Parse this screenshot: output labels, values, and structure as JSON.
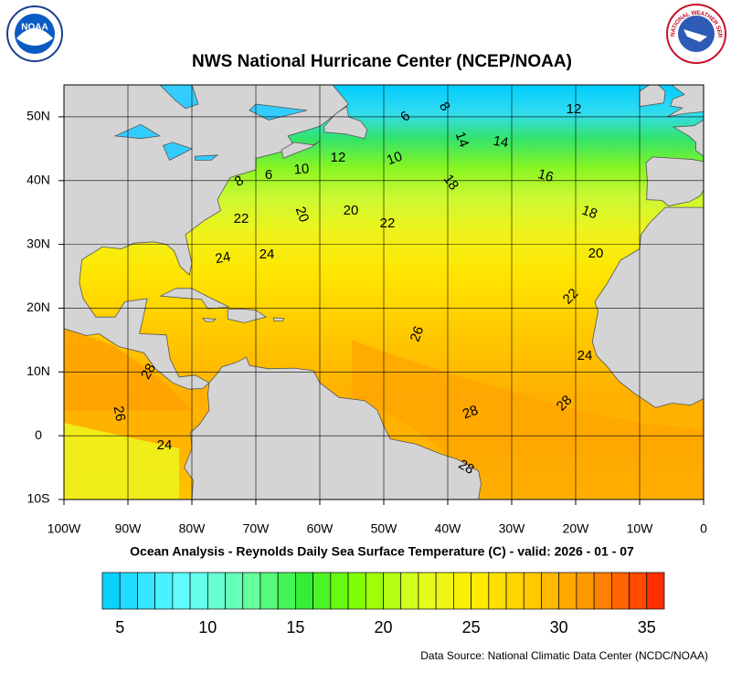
{
  "map": {
    "title": "NWS National Hurricane Center (NCEP/NOAA)",
    "subtitle": "Ocean Analysis - Reynolds Daily Sea Surface Temperature (C) - valid: 2026 - 01 - 07",
    "source": "Data Source: National Climatic Data Center (NCDC/NOAA)",
    "logos": {
      "left": "NOAA",
      "right": "NATIONAL WEATHER SERVICE"
    },
    "xlim": [
      -100,
      0
    ],
    "ylim": [
      -10,
      55
    ],
    "xticks": [
      {
        "value": -100,
        "label": "100W"
      },
      {
        "value": -90,
        "label": "90W"
      },
      {
        "value": -80,
        "label": "80W"
      },
      {
        "value": -70,
        "label": "70W"
      },
      {
        "value": -60,
        "label": "60W"
      },
      {
        "value": -50,
        "label": "50W"
      },
      {
        "value": -40,
        "label": "40W"
      },
      {
        "value": -30,
        "label": "30W"
      },
      {
        "value": -20,
        "label": "20W"
      },
      {
        "value": -10,
        "label": "10W"
      },
      0
    ],
    "yticks": [
      {
        "value": 50,
        "label": "50N"
      },
      {
        "value": 40,
        "label": "40N"
      },
      {
        "value": 30,
        "label": "30N"
      },
      {
        "value": 20,
        "label": "20N"
      },
      {
        "value": 10,
        "label": "10N"
      },
      0,
      {
        "value": -10,
        "label": "10S"
      }
    ],
    "grid": true,
    "contour_labels": [
      6,
      8,
      12,
      14,
      14,
      16,
      18,
      18,
      10,
      12,
      10,
      6,
      8,
      22,
      20,
      20,
      22,
      24,
      24,
      20,
      22,
      26,
      24,
      28,
      26,
      24,
      28,
      28,
      28
    ],
    "colorbar": {
      "range": [
        4,
        36
      ],
      "step": 1,
      "ticks": [
        5,
        10,
        15,
        20,
        25,
        30,
        35
      ]
    }
  }
}
